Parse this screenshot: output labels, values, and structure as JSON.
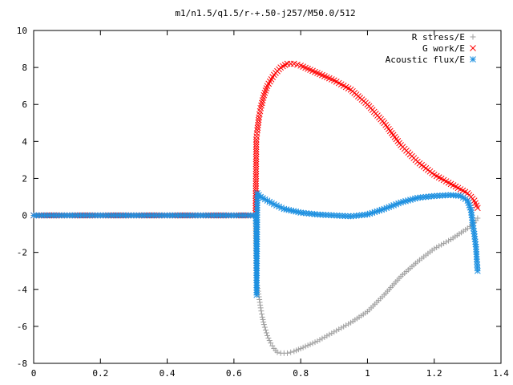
{
  "chart_data": {
    "type": "scatter",
    "title": "m1/n1.5/q1.5/r-+.50-j257/M50.0/512",
    "xlabel": "",
    "ylabel": "",
    "xlim": [
      0,
      1.4
    ],
    "ylim": [
      -8,
      10
    ],
    "xticks": [
      0,
      0.2,
      0.4,
      0.6,
      0.8,
      1,
      1.2,
      1.4
    ],
    "xtick_labels": [
      "0",
      "0.2",
      "0.4",
      "0.6",
      "0.8",
      "1",
      "1.2",
      "1.4"
    ],
    "yticks": [
      -8,
      -6,
      -4,
      -2,
      0,
      2,
      4,
      6,
      8,
      10
    ],
    "ytick_labels": [
      "-8",
      "-6",
      "-4",
      "-2",
      "0",
      "2",
      "4",
      "6",
      "8",
      "10"
    ],
    "grid": false,
    "legend_position": "top-right",
    "series": [
      {
        "name": "R stress/E",
        "marker": "plus",
        "color": "#a0a0a0",
        "points": [
          [
            0,
            0
          ],
          [
            0.1,
            0
          ],
          [
            0.2,
            0
          ],
          [
            0.3,
            0
          ],
          [
            0.4,
            0
          ],
          [
            0.5,
            0
          ],
          [
            0.6,
            0
          ],
          [
            0.665,
            0
          ],
          [
            0.667,
            -3.5
          ],
          [
            0.67,
            -3.8
          ],
          [
            0.675,
            -4.4
          ],
          [
            0.68,
            -5.0
          ],
          [
            0.685,
            -5.5
          ],
          [
            0.69,
            -5.9
          ],
          [
            0.7,
            -6.5
          ],
          [
            0.71,
            -6.9
          ],
          [
            0.72,
            -7.2
          ],
          [
            0.73,
            -7.4
          ],
          [
            0.74,
            -7.45
          ],
          [
            0.76,
            -7.45
          ],
          [
            0.78,
            -7.35
          ],
          [
            0.8,
            -7.2
          ],
          [
            0.85,
            -6.8
          ],
          [
            0.9,
            -6.3
          ],
          [
            0.95,
            -5.8
          ],
          [
            1.0,
            -5.2
          ],
          [
            1.05,
            -4.3
          ],
          [
            1.1,
            -3.3
          ],
          [
            1.15,
            -2.5
          ],
          [
            1.2,
            -1.8
          ],
          [
            1.25,
            -1.3
          ],
          [
            1.3,
            -0.7
          ],
          [
            1.32,
            -0.4
          ],
          [
            1.33,
            -0.15
          ]
        ]
      },
      {
        "name": "G work/E",
        "marker": "cross",
        "color": "#ff0000",
        "points": [
          [
            0,
            0
          ],
          [
            0.1,
            0
          ],
          [
            0.2,
            0
          ],
          [
            0.3,
            0
          ],
          [
            0.4,
            0
          ],
          [
            0.5,
            0
          ],
          [
            0.6,
            0
          ],
          [
            0.665,
            0
          ],
          [
            0.667,
            4.1
          ],
          [
            0.67,
            4.6
          ],
          [
            0.675,
            5.3
          ],
          [
            0.68,
            5.8
          ],
          [
            0.69,
            6.5
          ],
          [
            0.7,
            7.0
          ],
          [
            0.72,
            7.6
          ],
          [
            0.74,
            8.0
          ],
          [
            0.76,
            8.2
          ],
          [
            0.78,
            8.2
          ],
          [
            0.8,
            8.1
          ],
          [
            0.85,
            7.7
          ],
          [
            0.9,
            7.3
          ],
          [
            0.95,
            6.8
          ],
          [
            1.0,
            6.0
          ],
          [
            1.05,
            5.0
          ],
          [
            1.1,
            3.8
          ],
          [
            1.15,
            2.9
          ],
          [
            1.2,
            2.2
          ],
          [
            1.25,
            1.7
          ],
          [
            1.3,
            1.2
          ],
          [
            1.32,
            0.8
          ],
          [
            1.33,
            0.4
          ]
        ]
      },
      {
        "name": "Acoustic flux/E",
        "marker": "star",
        "color": "#1e90e0",
        "points": [
          [
            0,
            0
          ],
          [
            0.05,
            0
          ],
          [
            0.1,
            0
          ],
          [
            0.15,
            0
          ],
          [
            0.2,
            0
          ],
          [
            0.25,
            0
          ],
          [
            0.3,
            0
          ],
          [
            0.35,
            0
          ],
          [
            0.4,
            0
          ],
          [
            0.45,
            0
          ],
          [
            0.5,
            0
          ],
          [
            0.55,
            0
          ],
          [
            0.6,
            0
          ],
          [
            0.65,
            0
          ],
          [
            0.665,
            0
          ],
          [
            0.667,
            -0.6
          ],
          [
            0.668,
            -4.3
          ],
          [
            0.67,
            1.2
          ],
          [
            0.68,
            1.0
          ],
          [
            0.7,
            0.8
          ],
          [
            0.72,
            0.6
          ],
          [
            0.75,
            0.35
          ],
          [
            0.8,
            0.15
          ],
          [
            0.85,
            0.05
          ],
          [
            0.9,
            0
          ],
          [
            0.95,
            -0.05
          ],
          [
            1.0,
            0.05
          ],
          [
            1.05,
            0.35
          ],
          [
            1.1,
            0.7
          ],
          [
            1.15,
            0.95
          ],
          [
            1.2,
            1.05
          ],
          [
            1.25,
            1.1
          ],
          [
            1.28,
            1.05
          ],
          [
            1.3,
            0.8
          ],
          [
            1.31,
            0.3
          ],
          [
            1.315,
            -0.4
          ],
          [
            1.32,
            -1.0
          ],
          [
            1.325,
            -1.7
          ],
          [
            1.328,
            -2.5
          ],
          [
            1.33,
            -3.0
          ]
        ]
      }
    ]
  }
}
